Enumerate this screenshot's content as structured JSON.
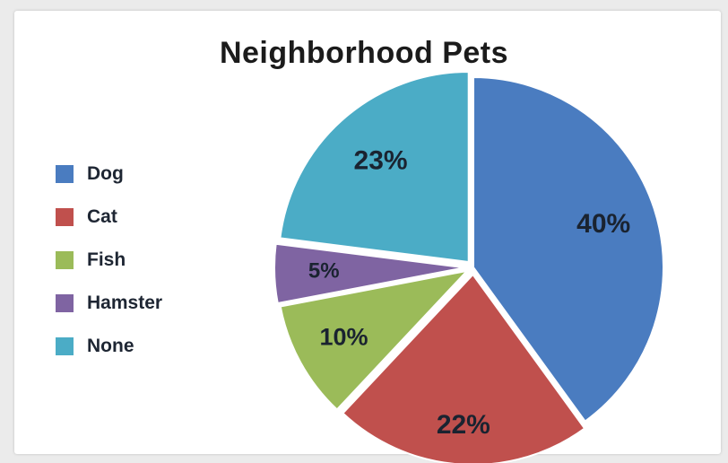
{
  "chart_data": {
    "type": "pie",
    "title": "Neighborhood Pets",
    "slices": [
      {
        "label": "Dog",
        "value": 40,
        "display": "40%",
        "color": "#4a7cc0"
      },
      {
        "label": "Cat",
        "value": 22,
        "display": "22%",
        "color": "#c0504d"
      },
      {
        "label": "Fish",
        "value": 10,
        "display": "10%",
        "color": "#9bbb59"
      },
      {
        "label": "Hamster",
        "value": 5,
        "display": "5%",
        "color": "#7f64a2"
      },
      {
        "label": "None",
        "value": 23,
        "display": "23%",
        "color": "#4bacc6"
      }
    ],
    "legend_position": "left"
  }
}
